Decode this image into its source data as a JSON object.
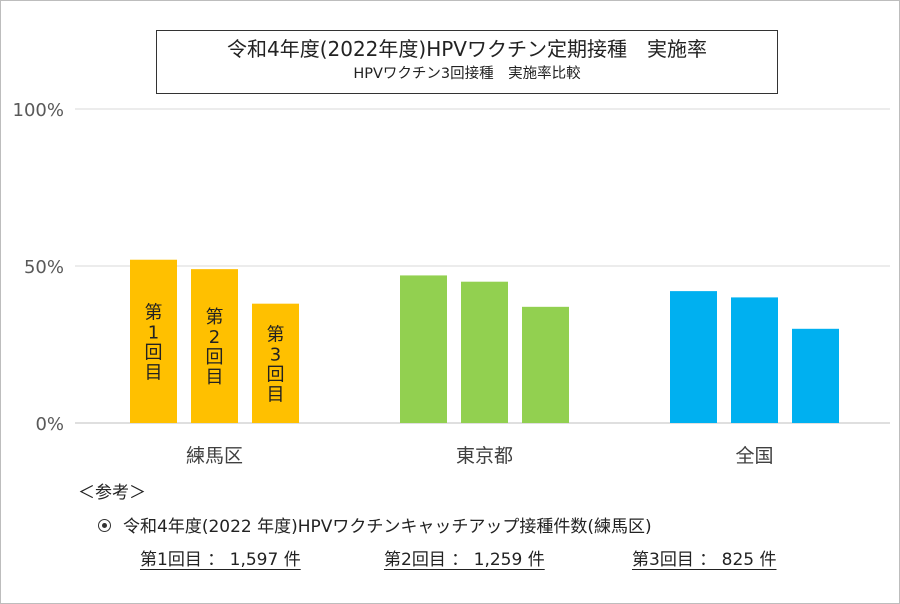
{
  "chart_data": {
    "type": "bar",
    "title": "令和4年度(2022年度)HPVワクチン定期接種　実施率",
    "subtitle": "HPVワクチン3回接種　実施率比較",
    "categories": [
      "練馬区",
      "東京都",
      "全国"
    ],
    "series": [
      {
        "name": "第1回目",
        "values": [
          52,
          47,
          42
        ]
      },
      {
        "name": "第2回目",
        "values": [
          49,
          45,
          40
        ]
      },
      {
        "name": "第3回目",
        "values": [
          38,
          37,
          30
        ]
      }
    ],
    "bar_colors": [
      "#FFC000",
      "#92D050",
      "#00B0F0"
    ],
    "yticks": [
      "0%",
      "50%",
      "100%"
    ],
    "ylim": [
      0,
      100
    ],
    "grid": true,
    "bar_labels": [
      "第\n1\n回\n目",
      "第\n2\n回\n目",
      "第\n3\n回\n目"
    ]
  },
  "notes": {
    "reference_heading": "＜参考＞",
    "bullet_text": "令和4年度(2022 年度)HPVワクチンキャッチアップ接種件数(練馬区)",
    "counts": [
      "第1回目 ： 1,597 件",
      "第2回目 ： 1,259 件",
      "第3回目 ： 825 件"
    ]
  }
}
